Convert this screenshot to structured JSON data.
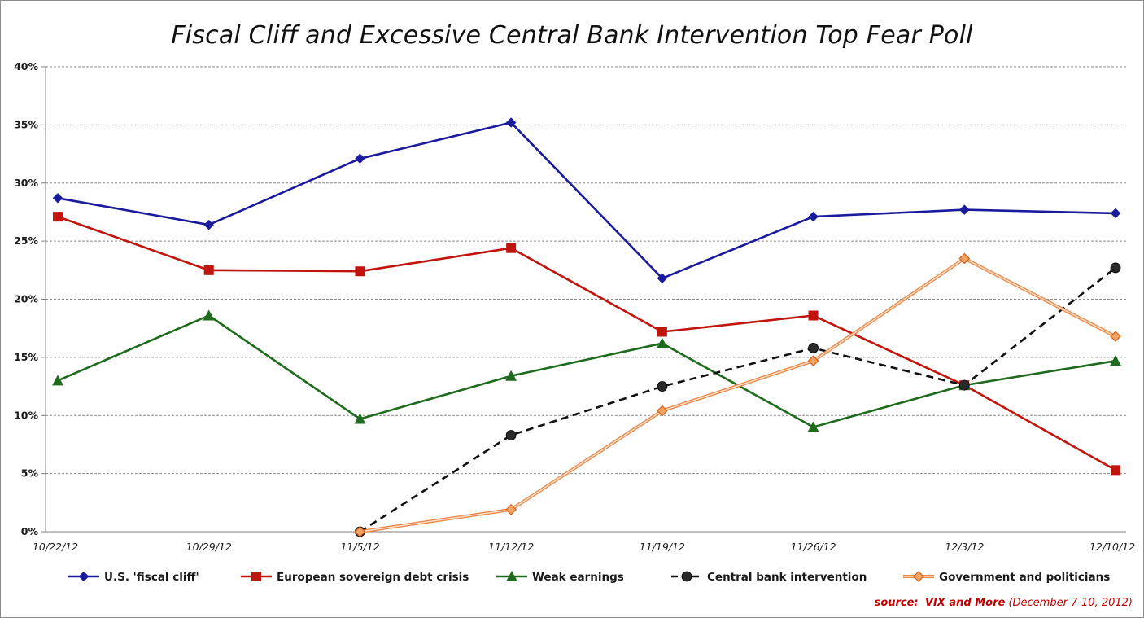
{
  "chart_data": {
    "type": "line",
    "title": "Fiscal Cliff and Excessive Central Bank Intervention Top Fear Poll",
    "xlabel": "",
    "ylabel": "",
    "categories": [
      "10/22/12",
      "10/29/12",
      "11/5/12",
      "11/12/12",
      "11/19/12",
      "11/26/12",
      "12/3/12",
      "12/10/12"
    ],
    "yticks": [
      "0%",
      "5%",
      "10%",
      "15%",
      "20%",
      "25%",
      "30%",
      "35%",
      "40%"
    ],
    "ylim": [
      0,
      40
    ],
    "grid": true,
    "legend_position": "bottom",
    "series": [
      {
        "name": "U.S. 'fiscal cliff'",
        "color": "#1a1a9c",
        "marker": "diamond",
        "dashed": false,
        "values": [
          28.7,
          26.4,
          32.1,
          35.2,
          21.8,
          27.1,
          27.7,
          27.4
        ]
      },
      {
        "name": "European sovereign debt crisis",
        "color": "#c0140c",
        "marker": "square",
        "dashed": false,
        "values": [
          27.1,
          22.5,
          22.4,
          24.4,
          17.2,
          18.6,
          12.6,
          5.3
        ]
      },
      {
        "name": "Weak earnings",
        "color": "#1e6b1e",
        "marker": "triangle",
        "dashed": false,
        "values": [
          13.0,
          18.6,
          9.7,
          13.4,
          16.2,
          9.0,
          12.6,
          14.7
        ]
      },
      {
        "name": "Central bank intervention",
        "color": "#111111",
        "marker": "circle",
        "dashed": true,
        "values": [
          null,
          null,
          0.0,
          8.3,
          12.5,
          15.8,
          12.6,
          22.7
        ]
      },
      {
        "name": "Government and politicians",
        "color": "#e8884a",
        "marker": "diamond-open",
        "dashed": false,
        "values": [
          null,
          null,
          0.0,
          1.9,
          10.4,
          14.7,
          23.5,
          16.8
        ]
      }
    ]
  },
  "source": {
    "label": "source:",
    "name": "VIX and More",
    "date": "(December 7-10, 2012)"
  }
}
